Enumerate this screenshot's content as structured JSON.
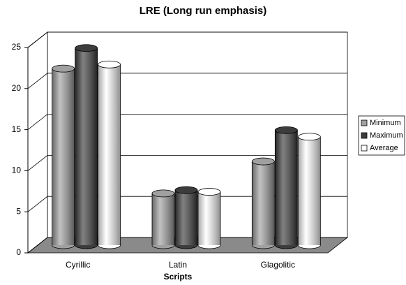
{
  "chart_data": {
    "type": "bar",
    "title": "LRE (Long run emphasis)",
    "x_label": "Scripts",
    "categories": [
      "Cyrillic",
      "Latin",
      "Glagolitic"
    ],
    "series": [
      {
        "name": "Minimum",
        "color": "#a0a0a0",
        "values": [
          21.5,
          6.3,
          10.2
        ]
      },
      {
        "name": "Maximum",
        "color": "#3c3c3c",
        "values": [
          24,
          6.7,
          14
        ]
      },
      {
        "name": "Average",
        "color": "#ffffff",
        "values": [
          22,
          6.5,
          13.2
        ]
      }
    ],
    "ylim": [
      0,
      25
    ],
    "yticks": [
      0,
      5,
      10,
      15,
      20,
      25
    ],
    "grid": true,
    "legend": "right"
  }
}
